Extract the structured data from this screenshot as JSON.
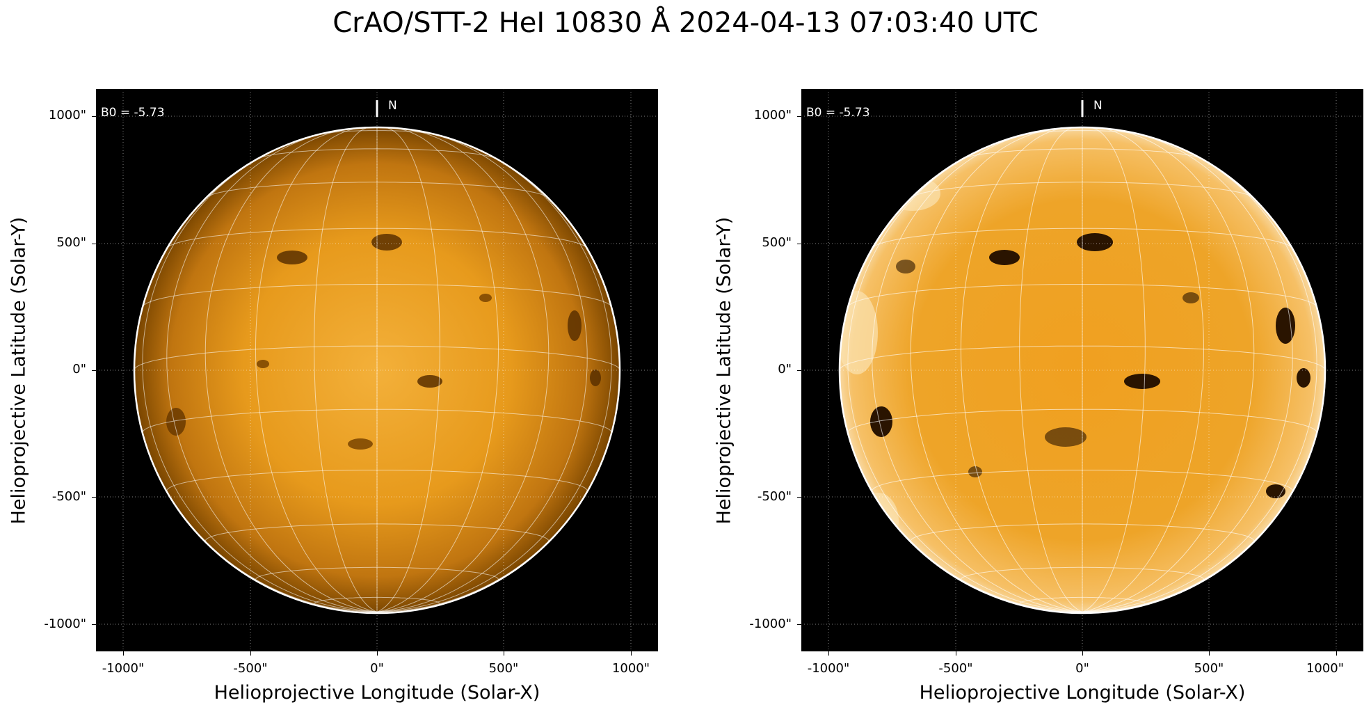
{
  "title": "CrAO/STT-2 HeI 10830 Å 2024-04-13 07:03:40 UTC",
  "panels": [
    {
      "id": "left",
      "b0_label": "B0 = -5.73",
      "north_label": "N",
      "xlabel": "Helioprojective Longitude (Solar-X)",
      "ylabel": "Helioprojective Latitude (Solar-Y)",
      "xticks": [
        "-1000\"",
        "-500\"",
        "0\"",
        "500\"",
        "1000\""
      ],
      "yticks": [
        "1000\"",
        "500\"",
        "0\"",
        "-500\"",
        "-1000\""
      ],
      "style": "normal"
    },
    {
      "id": "right",
      "b0_label": "B0 = -5.73",
      "north_label": "N",
      "xlabel": "Helioprojective Longitude (Solar-X)",
      "ylabel": "Helioprojective Latitude (Solar-Y)",
      "xticks": [
        "-1000\"",
        "-500\"",
        "0\"",
        "500\"",
        "1000\""
      ],
      "yticks": [
        "1000\"",
        "500\"",
        "0\"",
        "-500\"",
        "-1000\""
      ],
      "style": "enhanced"
    }
  ],
  "colors": {
    "disk_core": "#f0a82a",
    "disk_edge": "#8a5200",
    "background": "#000000",
    "grid": "#ffffff"
  }
}
